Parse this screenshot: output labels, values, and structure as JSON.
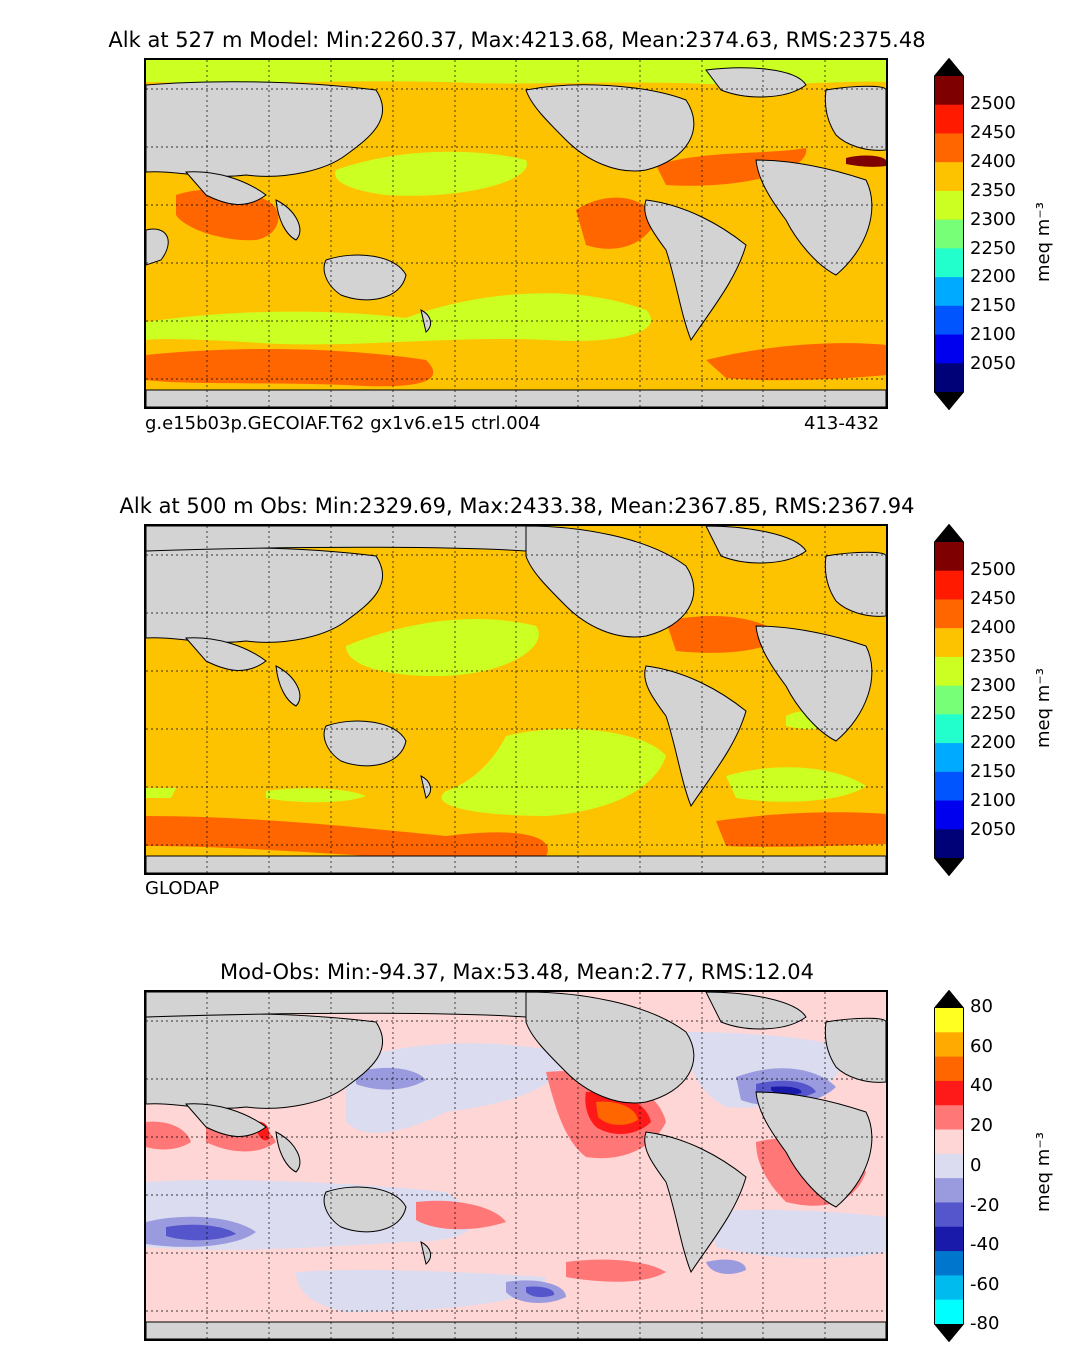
{
  "panels": [
    {
      "title": "Alk at 527 m Model: Min:2260.37, Max:4213.68, Mean:2374.63, RMS:2375.48",
      "note_left": "g.e15b03p.GECOIAF.T62 gx1v6.e15 ctrl.004",
      "note_right": "413-432"
    },
    {
      "title": "Alk at 500 m Obs: Min:2329.69, Max:2433.38, Mean:2367.85, RMS:2367.94",
      "note_left": "GLODAP",
      "note_right": ""
    },
    {
      "title": "Mod-Obs: Min:-94.37, Max:53.48, Mean:2.77, RMS:12.04",
      "note_left": "",
      "note_right": ""
    }
  ],
  "colorbar_alk": {
    "unit": "meq m⁻³",
    "ticks": [
      "2500",
      "2450",
      "2400",
      "2350",
      "2300",
      "2250",
      "2200",
      "2150",
      "2100",
      "2050"
    ],
    "colors": [
      "#7f0000",
      "#ff1a00",
      "#ff6600",
      "#fdc200",
      "#ccff22",
      "#77ff77",
      "#22ffcc",
      "#00aaff",
      "#0055ff",
      "#0000ee",
      "#000077"
    ]
  },
  "colorbar_diff": {
    "unit": "meq m⁻³",
    "ticks": [
      "80",
      "60",
      "40",
      "20",
      "0",
      "-20",
      "-40",
      "-60",
      "-80"
    ],
    "colors": [
      "#ffff22",
      "#ffaa00",
      "#ff6600",
      "#ff1a1a",
      "#ff7777",
      "#ffd6d6",
      "#dcdcf0",
      "#9a9adf",
      "#5555cc",
      "#1a1aaa",
      "#0077cc",
      "#00bbee",
      "#00ffff"
    ]
  },
  "map_colors": {
    "land": "#d3d3d3",
    "no_data": "#ffffff"
  }
}
